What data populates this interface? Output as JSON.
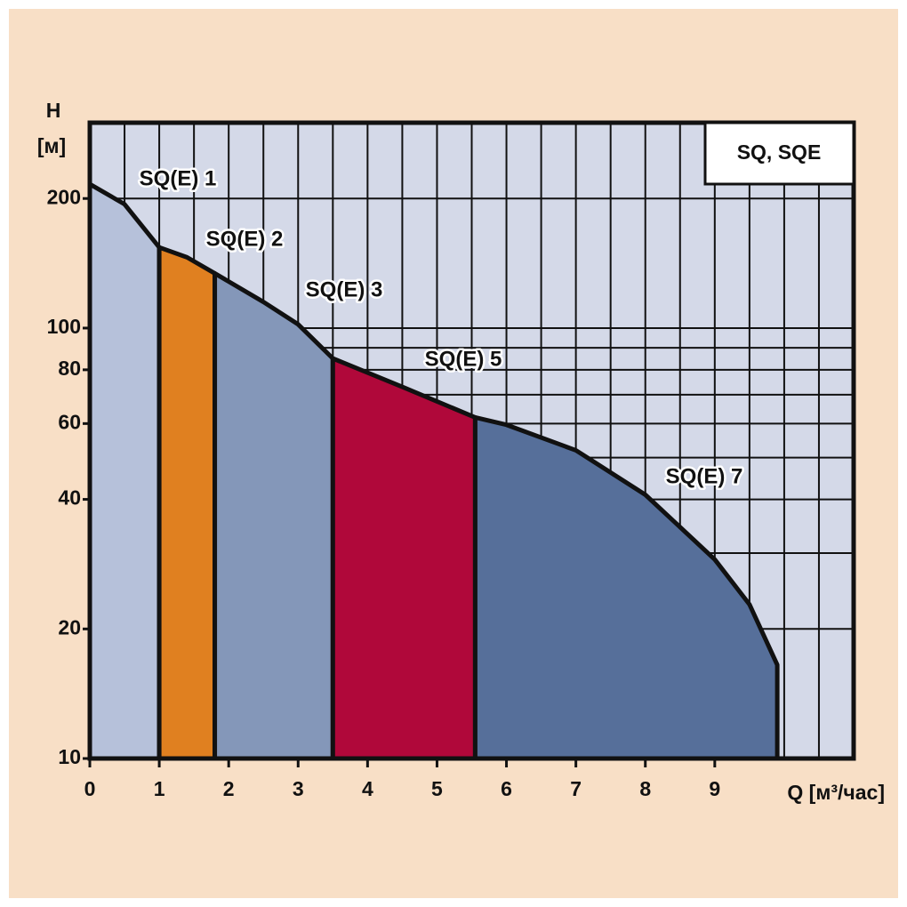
{
  "chart_data": {
    "type": "area",
    "title": "SQ, SQE",
    "y_label": "H",
    "y_unit": "[м]",
    "x_label": "Q [м³/час]",
    "xlim": [
      0,
      11
    ],
    "xticks": [
      0,
      1,
      2,
      3,
      4,
      5,
      6,
      7,
      8,
      9
    ],
    "ylim": [
      10,
      300
    ],
    "yticks": [
      10,
      20,
      40,
      60,
      80,
      100,
      200
    ],
    "log_y": true,
    "grid": true,
    "series": [
      {
        "name": "SQ(E) 1",
        "color": "#b6c1da",
        "x": [
          0,
          0.5,
          1
        ],
        "values": [
          216,
          194,
          154
        ]
      },
      {
        "name": "SQ(E) 2",
        "color": "#e08020",
        "x": [
          1,
          1.4,
          1.8
        ],
        "values": [
          154,
          146,
          134
        ]
      },
      {
        "name": "SQ(E) 3",
        "color": "#8497b9",
        "x": [
          1.8,
          2.5,
          3,
          3.5
        ],
        "values": [
          134,
          115,
          102,
          85
        ]
      },
      {
        "name": "SQ(E) 5",
        "color": "#b0083a",
        "x": [
          3.5,
          4.5,
          5.55
        ],
        "values": [
          85,
          73,
          62
        ]
      },
      {
        "name": "SQ(E) 7",
        "color": "#566f9a",
        "x": [
          5.55,
          6,
          7,
          8,
          9,
          9.5,
          9.9
        ],
        "values": [
          62,
          59.6,
          52,
          41,
          29,
          22.8,
          16.5
        ]
      }
    ]
  }
}
